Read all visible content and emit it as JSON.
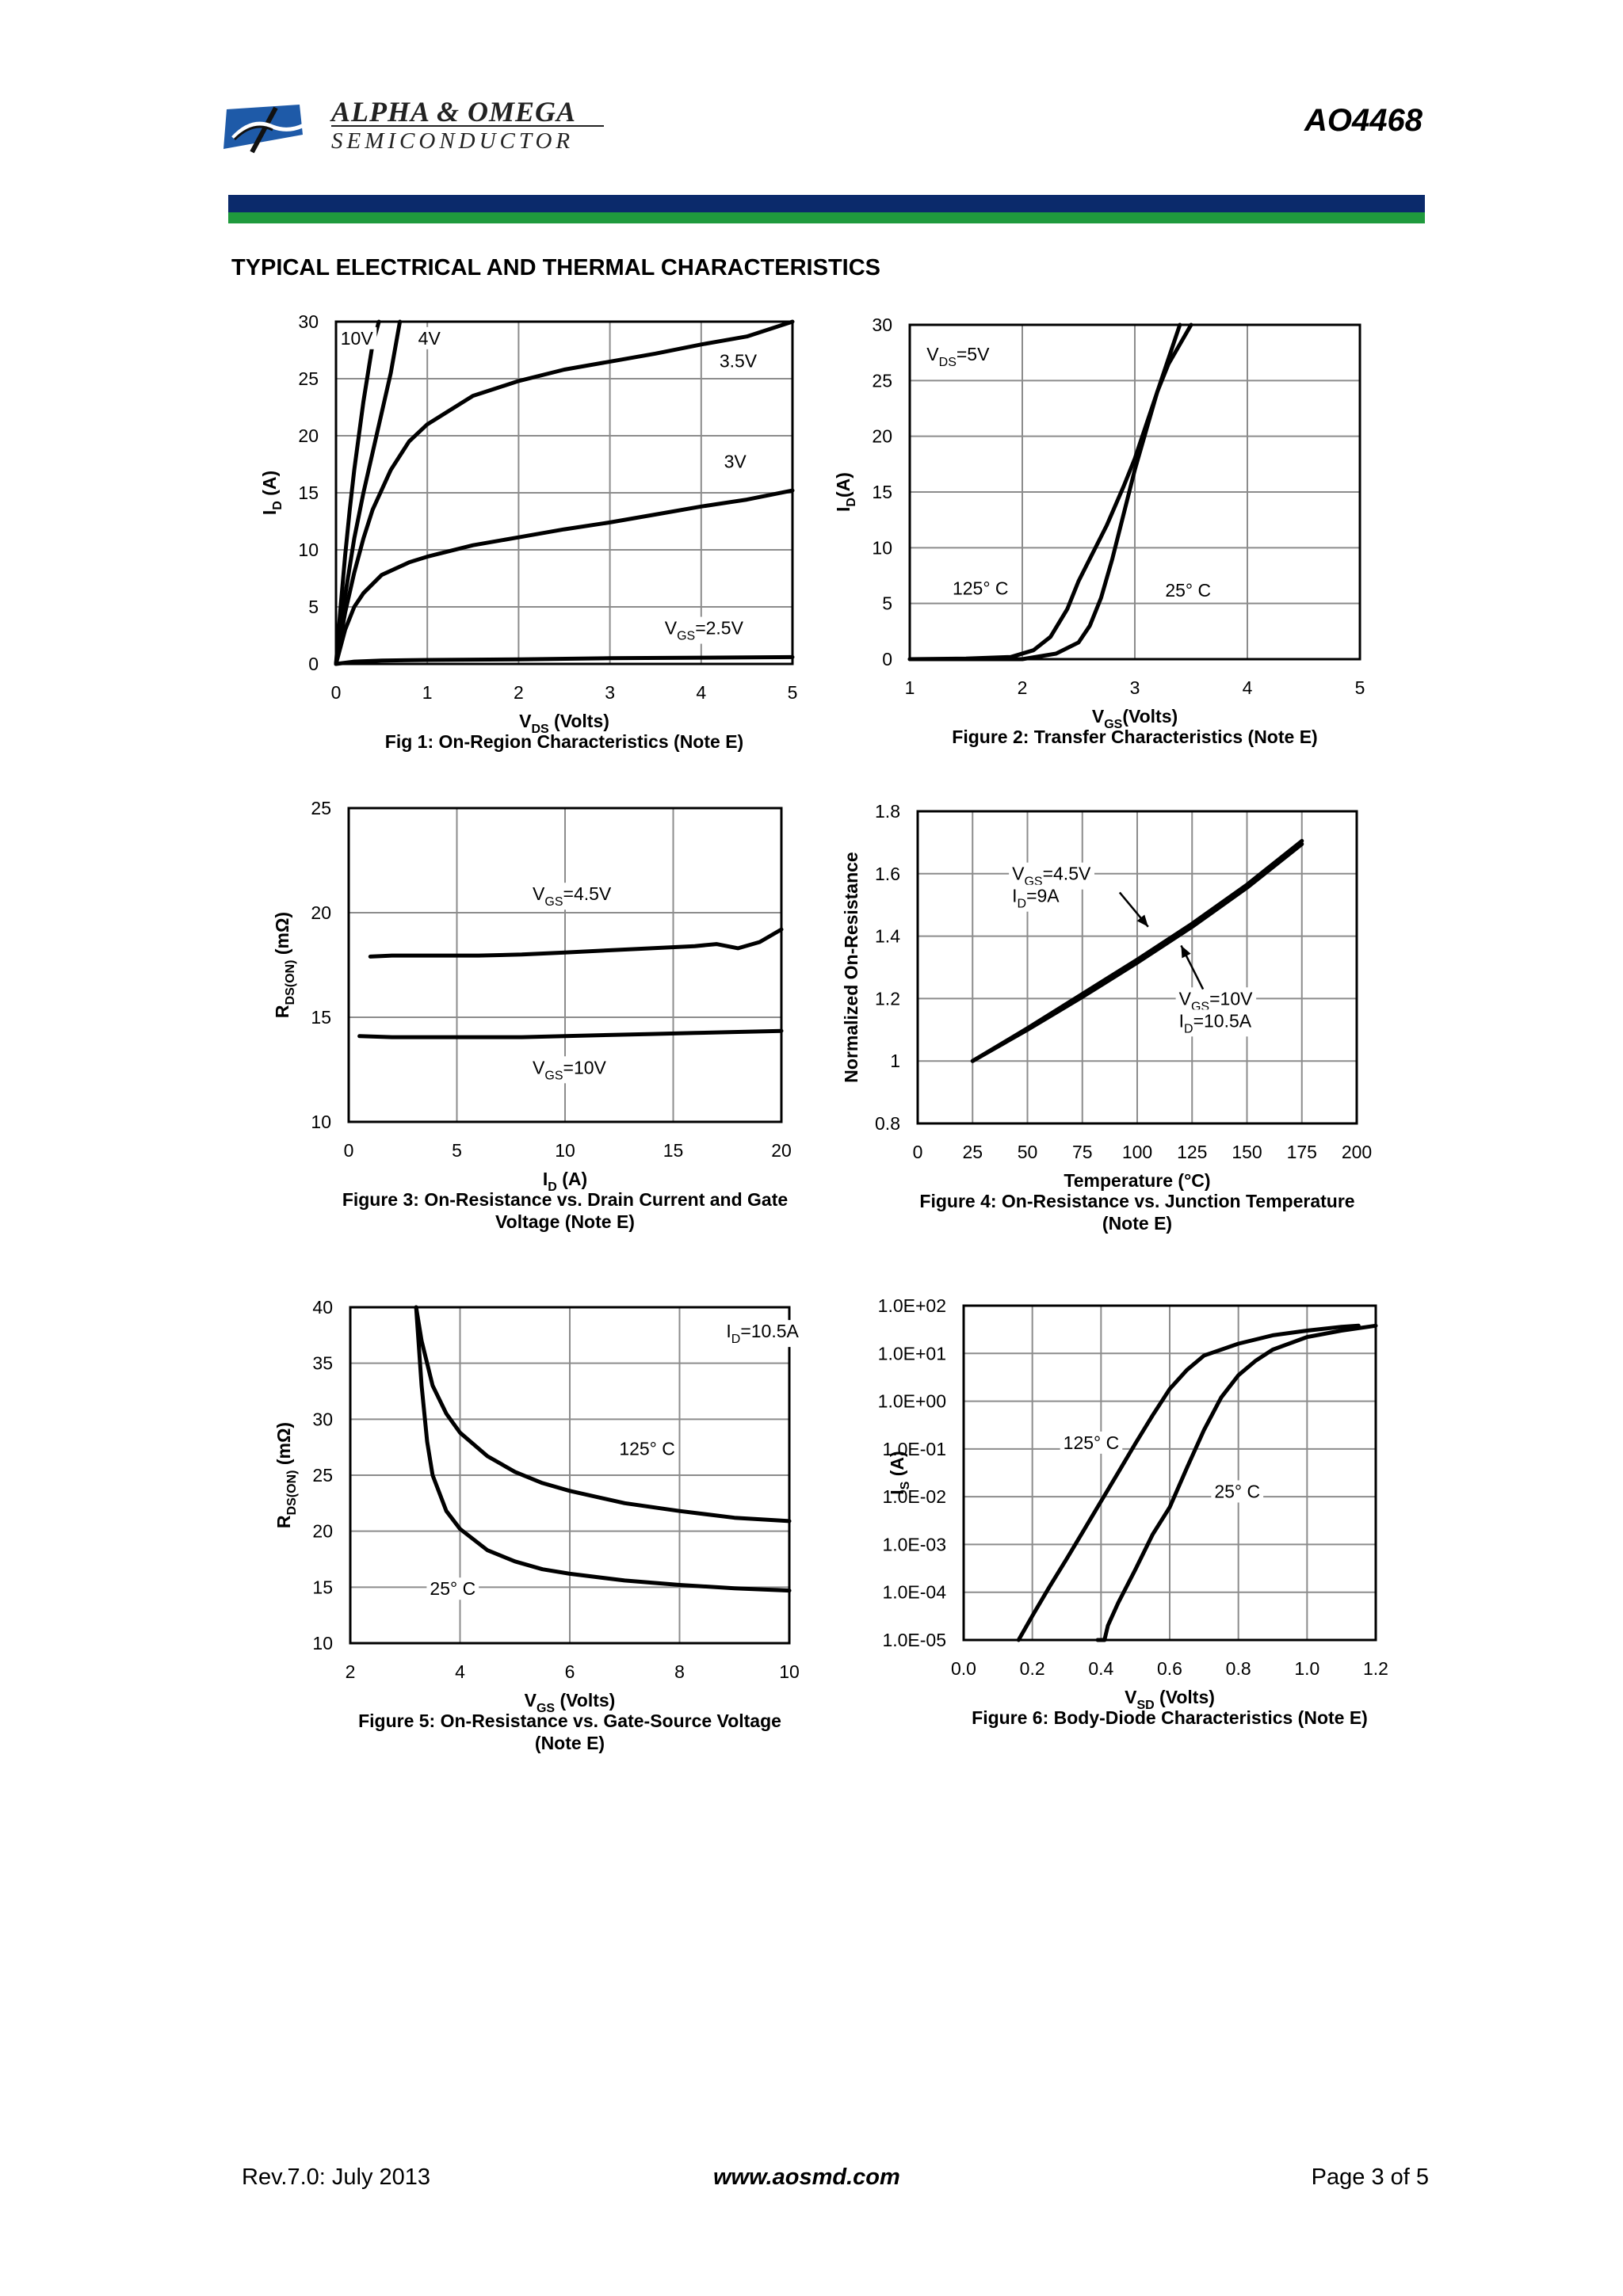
{
  "header": {
    "company_name": "ALPHA & OMEGA",
    "company_sub": "SEMICONDUCTOR",
    "part_number": "AO4468",
    "brand_colors": {
      "band_top": "#0b2a6b",
      "band_bottom": "#1f9a3d",
      "logo": "#1e5aa8"
    },
    "logo_icon": "alpha-omega-logo-icon"
  },
  "section_title": "TYPICAL ELECTRICAL AND THERMAL CHARACTERISTICS",
  "footer": {
    "revision": "Rev.7.0: July 2013",
    "website": "www.aosmd.com",
    "page": "Page 3 of 5"
  },
  "chart_data": [
    {
      "id": "fig1",
      "type": "line",
      "title": [
        "Fig 1: On-Region Characteristics (Note E)"
      ],
      "xlabel": {
        "main": "V",
        "sub": "DS",
        "tail": " (Volts)"
      },
      "ylabel": {
        "main": "I",
        "sub": "D",
        "tail": " (A)"
      },
      "xlim": [
        0,
        5
      ],
      "ylim": [
        0,
        30
      ],
      "xticks": [
        0,
        1,
        2,
        3,
        4,
        5
      ],
      "yticks": [
        0,
        5,
        10,
        15,
        20,
        25,
        30
      ],
      "xtick_labels": [
        "0",
        "1",
        "2",
        "3",
        "4",
        "5"
      ],
      "ytick_labels": [
        "0",
        "5",
        "10",
        "15",
        "20",
        "25",
        "30"
      ],
      "grid": true,
      "series": [
        {
          "name": "10V",
          "x": [
            0,
            0.05,
            0.1,
            0.15,
            0.2,
            0.3,
            0.4,
            0.47
          ],
          "y": [
            0,
            5,
            9.5,
            13.5,
            17,
            23,
            28,
            30
          ]
        },
        {
          "name": "4V",
          "x": [
            0,
            0.1,
            0.2,
            0.3,
            0.4,
            0.5,
            0.6,
            0.7
          ],
          "y": [
            0,
            6,
            11,
            15,
            18.5,
            22,
            25.5,
            30
          ]
        },
        {
          "name": "3.5V",
          "x": [
            0,
            0.1,
            0.2,
            0.3,
            0.4,
            0.6,
            0.8,
            1.0,
            1.5,
            2,
            2.5,
            3,
            3.5,
            4,
            4.5,
            5
          ],
          "y": [
            0,
            4.5,
            8,
            11,
            13.5,
            17,
            19.5,
            21,
            23.5,
            24.8,
            25.8,
            26.5,
            27.2,
            28,
            28.7,
            30
          ]
        },
        {
          "name": "3V",
          "x": [
            0,
            0.1,
            0.2,
            0.3,
            0.5,
            0.8,
            1,
            1.5,
            2,
            2.5,
            3,
            3.5,
            4,
            4.5,
            5
          ],
          "y": [
            0,
            3,
            5,
            6.2,
            7.8,
            8.9,
            9.4,
            10.4,
            11.1,
            11.8,
            12.4,
            13.1,
            13.8,
            14.4,
            15.2
          ]
        },
        {
          "name": "V_GS=2.5V",
          "x": [
            0,
            0.2,
            0.5,
            1,
            2,
            3,
            4,
            5
          ],
          "y": [
            0,
            0.2,
            0.3,
            0.35,
            0.4,
            0.5,
            0.55,
            0.6
          ]
        }
      ],
      "annotations": [
        {
          "text": "10V",
          "x": 0.05,
          "y": 28
        },
        {
          "text": "4V",
          "x": 0.9,
          "y": 28
        },
        {
          "text": "3.5V",
          "x": 4.2,
          "y": 26
        },
        {
          "text": "3V",
          "x": 4.25,
          "y": 17.2
        },
        {
          "main": "V",
          "sub": "GS",
          "tail": "=2.5V",
          "x": 3.6,
          "y": 2.6
        }
      ]
    },
    {
      "id": "fig2",
      "type": "line",
      "title": [
        "Figure 2: Transfer Characteristics (Note E)"
      ],
      "xlabel": {
        "main": "V",
        "sub": "GS",
        "tail": "(Volts)"
      },
      "ylabel": {
        "main": "I",
        "sub": "D",
        "tail": "(A)"
      },
      "xlim": [
        1,
        5
      ],
      "ylim": [
        0,
        30
      ],
      "xticks": [
        1,
        2,
        3,
        4,
        5
      ],
      "yticks": [
        0,
        5,
        10,
        15,
        20,
        25,
        30
      ],
      "xtick_labels": [
        "1",
        "2",
        "3",
        "4",
        "5"
      ],
      "ytick_labels": [
        "0",
        "5",
        "10",
        "15",
        "20",
        "25",
        "30"
      ],
      "grid": true,
      "series": [
        {
          "name": "125°C",
          "x": [
            1,
            1.5,
            1.9,
            2.1,
            2.25,
            2.4,
            2.5,
            2.6,
            2.75,
            2.9,
            3.0,
            3.1,
            3.2,
            3.3,
            3.4
          ],
          "y": [
            0,
            0.05,
            0.2,
            0.8,
            2,
            4.5,
            7,
            9,
            12,
            15.5,
            18,
            21,
            24,
            27,
            30
          ]
        },
        {
          "name": "25°C",
          "x": [
            1,
            2,
            2.3,
            2.5,
            2.6,
            2.7,
            2.8,
            2.9,
            3.0,
            3.1,
            3.2,
            3.3,
            3.5
          ],
          "y": [
            0,
            0,
            0.5,
            1.5,
            3,
            5.5,
            9,
            13,
            17,
            20.5,
            24,
            26.5,
            30
          ]
        }
      ],
      "annotations": [
        {
          "main": "V",
          "sub": "DS",
          "tail": "=5V",
          "x": 1.15,
          "y": 26.8
        },
        {
          "text": "125° C",
          "x": 1.38,
          "y": 5.8
        },
        {
          "text": "25° C",
          "x": 3.27,
          "y": 5.6
        }
      ]
    },
    {
      "id": "fig3",
      "type": "line",
      "title": [
        "Figure 3: On-Resistance vs. Drain Current and Gate",
        "Voltage (Note E)"
      ],
      "xlabel": {
        "main": "I",
        "sub": "D",
        "tail": " (A)"
      },
      "ylabel": {
        "main": "R",
        "sub": "DS(ON)",
        "tail": " (mΩ)"
      },
      "xlim": [
        0,
        20
      ],
      "ylim": [
        10,
        25
      ],
      "xticks": [
        0,
        5,
        10,
        15,
        20
      ],
      "yticks": [
        10,
        15,
        20,
        25
      ],
      "xtick_labels": [
        "0",
        "5",
        "10",
        "15",
        "20"
      ],
      "ytick_labels": [
        "10",
        "15",
        "20",
        "25"
      ],
      "grid": true,
      "series": [
        {
          "name": "V_GS=4.5V",
          "x": [
            1,
            2,
            4,
            6,
            8,
            10,
            12,
            14,
            16,
            17,
            18,
            19,
            20
          ],
          "y": [
            17.9,
            17.95,
            17.95,
            17.95,
            18,
            18.1,
            18.2,
            18.3,
            18.4,
            18.5,
            18.3,
            18.6,
            19.2
          ]
        },
        {
          "name": "V_GS=10V",
          "x": [
            0.5,
            2,
            4,
            6,
            8,
            10,
            12,
            14,
            16,
            18,
            20
          ],
          "y": [
            14.1,
            14.05,
            14.05,
            14.05,
            14.05,
            14.1,
            14.15,
            14.2,
            14.25,
            14.3,
            14.35
          ]
        }
      ],
      "annotations": [
        {
          "main": "V",
          "sub": "GS",
          "tail": "=4.5V",
          "x": 8.5,
          "y": 20.6
        },
        {
          "main": "V",
          "sub": "GS",
          "tail": "=10V",
          "x": 8.5,
          "y": 12.3
        }
      ]
    },
    {
      "id": "fig4",
      "type": "line",
      "title": [
        "Figure 4: On-Resistance vs. Junction Temperature",
        "(Note E)"
      ],
      "xlabel": {
        "main": "Temperature (°C)"
      },
      "ylabel": {
        "main": "Normalized On-Resistance"
      },
      "xlim": [
        0,
        200
      ],
      "ylim": [
        0.8,
        1.8
      ],
      "xticks": [
        0,
        25,
        50,
        75,
        100,
        125,
        150,
        175,
        200
      ],
      "yticks": [
        0.8,
        1,
        1.2,
        1.4,
        1.6,
        1.8
      ],
      "xtick_labels": [
        "0",
        "25",
        "50",
        "75",
        "100",
        "125",
        "150",
        "175",
        "200"
      ],
      "ytick_labels": [
        "0.8",
        "1",
        "1.2",
        "1.4",
        "1.6",
        "1.8"
      ],
      "grid": true,
      "series": [
        {
          "name": "V_GS=4.5V, I_D=9A",
          "x": [
            25,
            50,
            75,
            100,
            125,
            150,
            175
          ],
          "y": [
            1.0,
            1.105,
            1.215,
            1.325,
            1.44,
            1.565,
            1.705
          ]
        },
        {
          "name": "V_GS=10V, I_D=10.5A",
          "x": [
            25,
            50,
            75,
            100,
            125,
            150,
            175
          ],
          "y": [
            1.0,
            1.1,
            1.205,
            1.315,
            1.43,
            1.555,
            1.695
          ]
        }
      ],
      "annotations": [
        {
          "lines": [
            {
              "main": "V",
              "sub": "GS",
              "tail": "=4.5V"
            },
            {
              "main": "I",
              "sub": "D",
              "tail": "=9A"
            }
          ],
          "x": 43,
          "y": 1.58
        },
        {
          "lines": [
            {
              "main": "V",
              "sub": "GS",
              "tail": "=10V"
            },
            {
              "main": "I",
              "sub": "D",
              "tail": "=10.5A"
            }
          ],
          "x": 119,
          "y": 1.18
        }
      ],
      "arrows": [
        {
          "from": [
            92,
            1.54
          ],
          "to": [
            105,
            1.43
          ]
        },
        {
          "from": [
            130,
            1.23
          ],
          "to": [
            120,
            1.37
          ]
        }
      ]
    },
    {
      "id": "fig5",
      "type": "line",
      "title": [
        "Figure 5: On-Resistance vs. Gate-Source Voltage",
        "(Note E)"
      ],
      "xlabel": {
        "main": "V",
        "sub": "GS",
        "tail": " (Volts)"
      },
      "ylabel": {
        "main": "R",
        "sub": "DS(ON)",
        "tail": " (mΩ)"
      },
      "xlim": [
        2,
        10
      ],
      "ylim": [
        10,
        40
      ],
      "xticks": [
        2,
        4,
        6,
        8,
        10
      ],
      "yticks": [
        10,
        15,
        20,
        25,
        30,
        35,
        40
      ],
      "xtick_labels": [
        "2",
        "4",
        "6",
        "8",
        "10"
      ],
      "ytick_labels": [
        "10",
        "15",
        "20",
        "25",
        "30",
        "35",
        "40"
      ],
      "grid": true,
      "series": [
        {
          "name": "125°C",
          "x": [
            3.2,
            3.3,
            3.5,
            3.75,
            4,
            4.5,
            5,
            5.5,
            6,
            7,
            8,
            9,
            10
          ],
          "y": [
            40,
            37,
            33,
            30.5,
            28.8,
            26.7,
            25.3,
            24.3,
            23.6,
            22.5,
            21.8,
            21.2,
            20.9
          ]
        },
        {
          "name": "25°C",
          "x": [
            3.2,
            3.3,
            3.4,
            3.5,
            3.75,
            4,
            4.5,
            5,
            5.5,
            6,
            7,
            8,
            9,
            10
          ],
          "y": [
            40,
            33,
            28,
            25,
            21.8,
            20.2,
            18.3,
            17.3,
            16.6,
            16.2,
            15.6,
            15.2,
            14.9,
            14.7
          ]
        }
      ],
      "annotations": [
        {
          "main": "I",
          "sub": "D",
          "tail": "=10.5A",
          "x": 8.85,
          "y": 37.3
        },
        {
          "text": "125° C",
          "x": 6.9,
          "y": 26.8
        },
        {
          "text": "25° C",
          "x": 3.45,
          "y": 14.3
        }
      ]
    },
    {
      "id": "fig6",
      "type": "line",
      "title": [
        "Figure 6: Body-Diode Characteristics (Note E)"
      ],
      "xlabel": {
        "main": "V",
        "sub": "SD",
        "tail": " (Volts)"
      },
      "ylabel": {
        "main": "I",
        "sub": "S",
        "tail": " (A)"
      },
      "xlim": [
        0,
        1.2
      ],
      "ylim": [
        1e-05,
        100
      ],
      "yscale": "log",
      "xticks": [
        0,
        0.2,
        0.4,
        0.6,
        0.8,
        1.0,
        1.2
      ],
      "yticks": [
        1e-05,
        0.0001,
        0.001,
        0.01,
        0.1,
        1,
        10,
        100
      ],
      "xtick_labels": [
        "0.0",
        "0.2",
        "0.4",
        "0.6",
        "0.8",
        "1.0",
        "1.2"
      ],
      "ytick_labels": [
        "1.0E-05",
        "1.0E-04",
        "1.0E-03",
        "1.0E-02",
        "1.0E-01",
        "1.0E+00",
        "1.0E+01",
        "1.0E+02"
      ],
      "grid": true,
      "series": [
        {
          "name": "125°C",
          "x": [
            0.16,
            0.2,
            0.25,
            0.3,
            0.35,
            0.4,
            0.45,
            0.5,
            0.55,
            0.6,
            0.65,
            0.7,
            0.8,
            0.9,
            1.0,
            1.1,
            1.15
          ],
          "y": [
            1e-05,
            3.2e-05,
            0.00013,
            0.0005,
            0.002,
            0.008,
            0.032,
            0.13,
            0.5,
            1.8,
            4.5,
            9,
            16,
            24,
            30,
            36,
            38
          ]
        },
        {
          "name": "25°C",
          "x": [
            0.39,
            0.41,
            0.42,
            0.45,
            0.5,
            0.55,
            0.6,
            0.65,
            0.7,
            0.75,
            0.8,
            0.85,
            0.9,
            1.0,
            1.1,
            1.2
          ],
          "y": [
            1e-05,
            1e-05,
            2e-05,
            6e-05,
            0.0003,
            0.0016,
            0.006,
            0.04,
            0.25,
            1.2,
            3.5,
            7,
            12,
            22,
            30,
            38
          ]
        }
      ],
      "annotations": [
        {
          "text": "125° C",
          "x": 0.29,
          "y": 0.1
        },
        {
          "text": "25° C",
          "x": 0.73,
          "y": 0.0095
        }
      ]
    }
  ]
}
